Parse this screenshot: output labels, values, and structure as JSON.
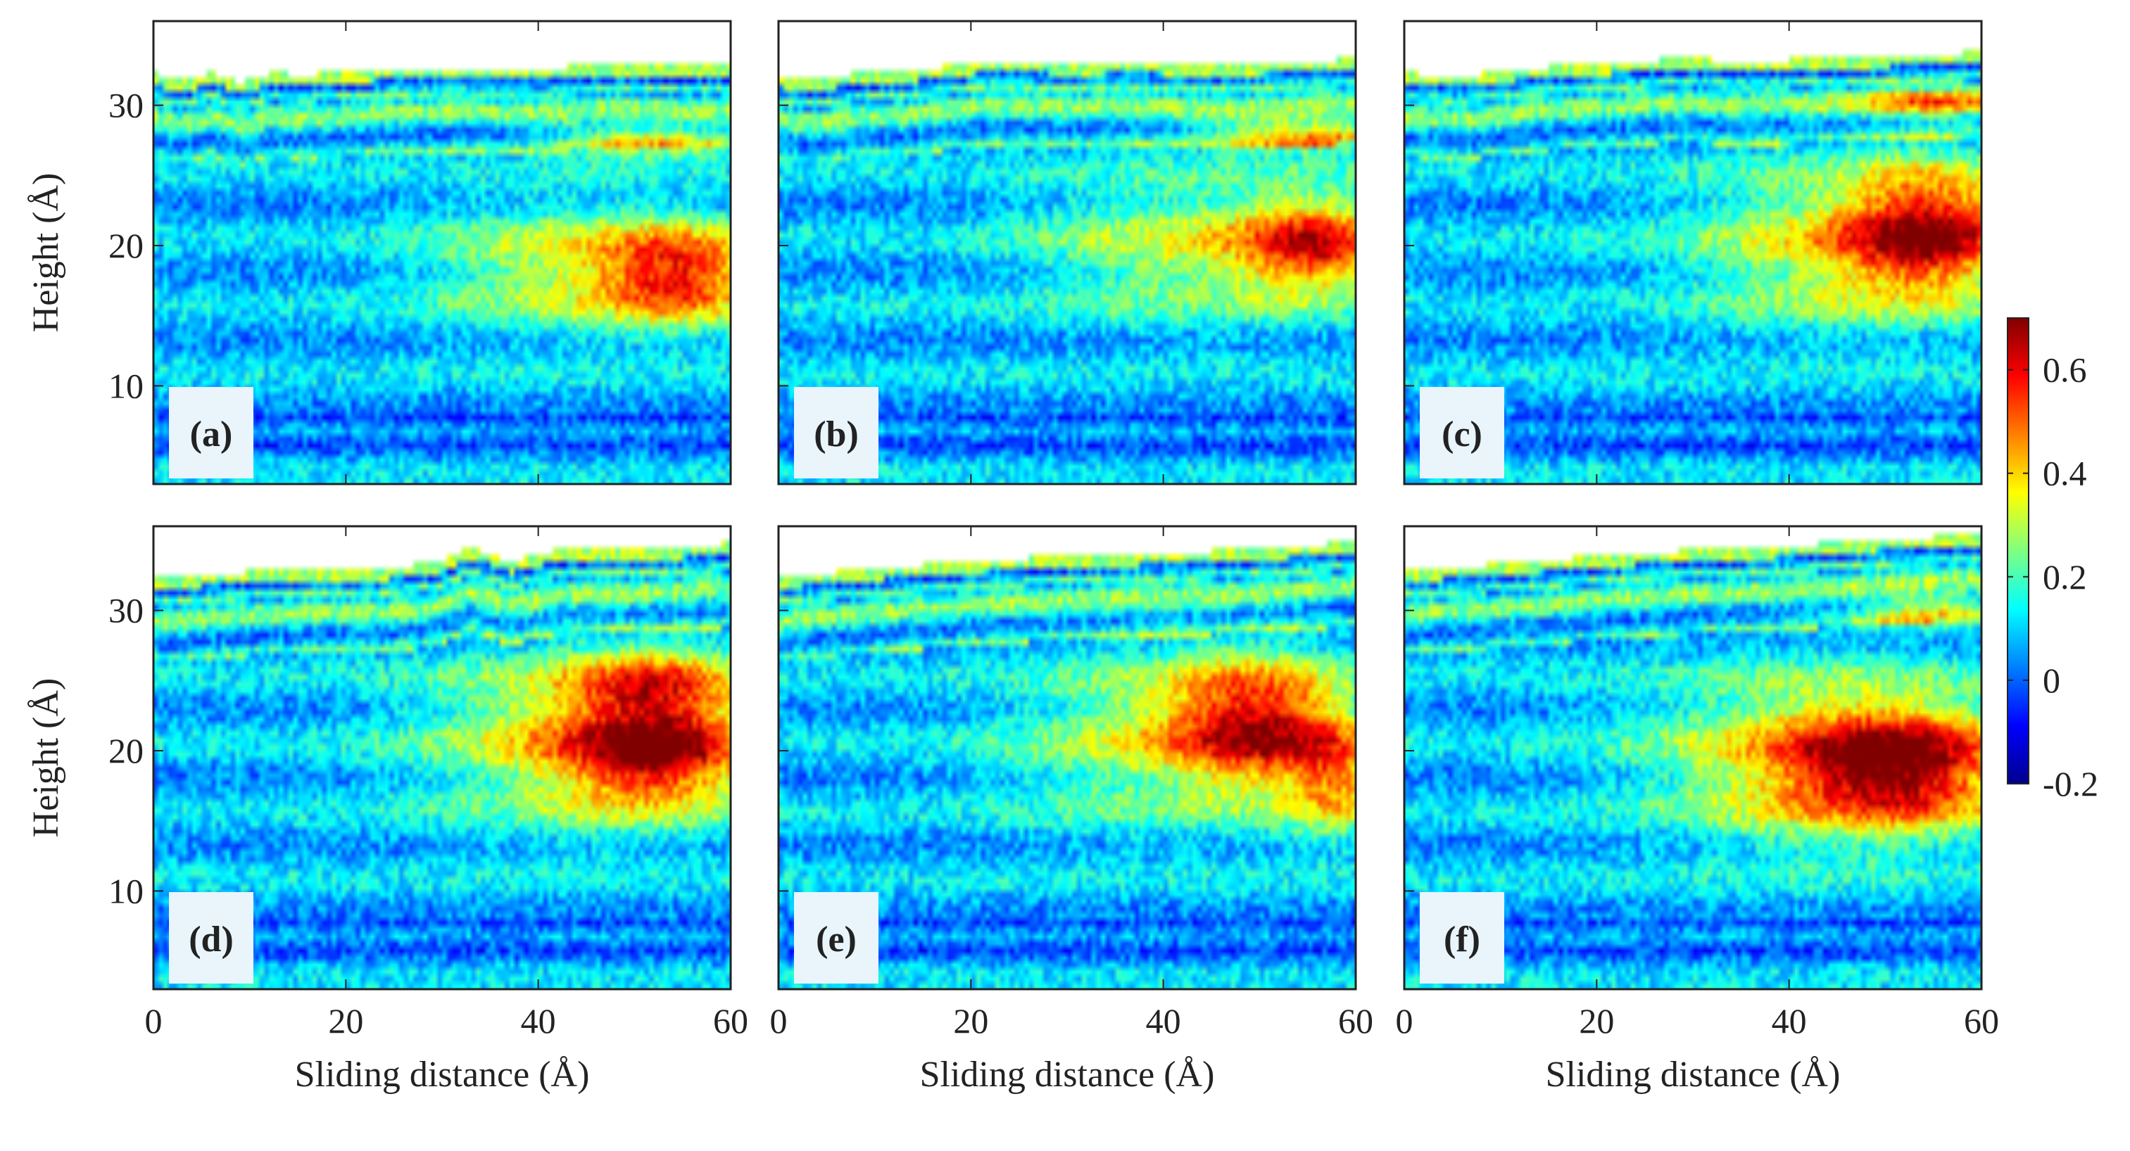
{
  "chart_data": {
    "type": "heatmap",
    "layout": "2x3 panels, shared colorbar at right",
    "colormap": "jet",
    "xlabel": "Sliding distance (Å)",
    "ylabel": "Height (Å)",
    "xlim": [
      0,
      60
    ],
    "ylim": [
      3,
      36
    ],
    "x_ticks": [
      0,
      20,
      40,
      60
    ],
    "x_tick_labels": [
      "0",
      "20",
      "40",
      "60"
    ],
    "y_ticks": [
      10,
      20,
      30
    ],
    "y_tick_labels": [
      "10",
      "20",
      "30"
    ],
    "colorbar": {
      "range": [
        -0.2,
        0.7
      ],
      "ticks": [
        -0.2,
        0,
        0.2,
        0.4,
        0.6
      ],
      "tick_labels": [
        "-0.2",
        "0",
        "0.2",
        "0.4",
        "0.6"
      ]
    },
    "panels": [
      {
        "label": "(a)",
        "surface_top": [
          {
            "x": 0,
            "y": 32.3
          },
          {
            "x": 3,
            "y": 31.7
          },
          {
            "x": 6,
            "y": 32.4
          },
          {
            "x": 9,
            "y": 31.6
          },
          {
            "x": 12,
            "y": 32.3
          },
          {
            "x": 16,
            "y": 32.2
          },
          {
            "x": 24,
            "y": 32.6
          },
          {
            "x": 32,
            "y": 32.7
          },
          {
            "x": 40,
            "y": 32.6
          },
          {
            "x": 48,
            "y": 33.0
          },
          {
            "x": 54,
            "y": 32.8
          },
          {
            "x": 60,
            "y": 32.9
          }
        ],
        "hotspots": [
          {
            "x": 55,
            "y": 18,
            "sx": 9,
            "sy": 3.5,
            "value": 0.45
          },
          {
            "x": 42,
            "y": 18.5,
            "sx": 14,
            "sy": 4.5,
            "value": 0.22
          },
          {
            "x": 52,
            "y": 27.5,
            "sx": 10,
            "sy": 1.2,
            "value": 0.3
          }
        ]
      },
      {
        "label": "(b)",
        "surface_top": [
          {
            "x": 0,
            "y": 32.1
          },
          {
            "x": 4,
            "y": 31.8
          },
          {
            "x": 8,
            "y": 32.3
          },
          {
            "x": 14,
            "y": 32.5
          },
          {
            "x": 22,
            "y": 33.2
          },
          {
            "x": 30,
            "y": 33.0
          },
          {
            "x": 38,
            "y": 33.1
          },
          {
            "x": 46,
            "y": 32.9
          },
          {
            "x": 52,
            "y": 33.1
          },
          {
            "x": 60,
            "y": 33.3
          }
        ],
        "hotspots": [
          {
            "x": 56,
            "y": 20,
            "sx": 8,
            "sy": 3.5,
            "value": 0.45
          },
          {
            "x": 42,
            "y": 20,
            "sx": 15,
            "sy": 5,
            "value": 0.22
          },
          {
            "x": 55,
            "y": 28,
            "sx": 10,
            "sy": 1.2,
            "value": 0.35
          }
        ]
      },
      {
        "label": "(c)",
        "surface_top": [
          {
            "x": 0,
            "y": 32.3
          },
          {
            "x": 6,
            "y": 32.1
          },
          {
            "x": 12,
            "y": 32.6
          },
          {
            "x": 20,
            "y": 33.0
          },
          {
            "x": 28,
            "y": 33.3
          },
          {
            "x": 36,
            "y": 33.2
          },
          {
            "x": 44,
            "y": 33.3
          },
          {
            "x": 52,
            "y": 33.6
          },
          {
            "x": 60,
            "y": 33.8
          }
        ],
        "hotspots": [
          {
            "x": 55,
            "y": 21,
            "sx": 9,
            "sy": 4.5,
            "value": 0.5
          },
          {
            "x": 44,
            "y": 20,
            "sx": 15,
            "sy": 5.5,
            "value": 0.25
          },
          {
            "x": 55,
            "y": 30,
            "sx": 8,
            "sy": 1.0,
            "value": 0.3
          }
        ]
      },
      {
        "label": "(d)",
        "surface_top": [
          {
            "x": 0,
            "y": 32.3
          },
          {
            "x": 8,
            "y": 32.7
          },
          {
            "x": 16,
            "y": 33.0
          },
          {
            "x": 24,
            "y": 33.0
          },
          {
            "x": 30,
            "y": 33.5
          },
          {
            "x": 33,
            "y": 34.5
          },
          {
            "x": 37,
            "y": 33.5
          },
          {
            "x": 42,
            "y": 34.3
          },
          {
            "x": 48,
            "y": 34.4
          },
          {
            "x": 54,
            "y": 34.5
          },
          {
            "x": 60,
            "y": 34.8
          }
        ],
        "hotspots": [
          {
            "x": 53,
            "y": 20,
            "sx": 10,
            "sy": 4,
            "value": 0.52
          },
          {
            "x": 42,
            "y": 21,
            "sx": 15,
            "sy": 6,
            "value": 0.25
          },
          {
            "x": 52,
            "y": 25,
            "sx": 9,
            "sy": 2.5,
            "value": 0.3
          }
        ]
      },
      {
        "label": "(e)",
        "surface_top": [
          {
            "x": 0,
            "y": 32.4
          },
          {
            "x": 10,
            "y": 33.0
          },
          {
            "x": 20,
            "y": 33.5
          },
          {
            "x": 30,
            "y": 33.9
          },
          {
            "x": 40,
            "y": 34.1
          },
          {
            "x": 50,
            "y": 34.4
          },
          {
            "x": 60,
            "y": 34.9
          }
        ],
        "hotspots": [
          {
            "x": 50,
            "y": 22,
            "sx": 9,
            "sy": 4.5,
            "value": 0.45
          },
          {
            "x": 40,
            "y": 21,
            "sx": 16,
            "sy": 6,
            "value": 0.22
          },
          {
            "x": 58,
            "y": 18,
            "sx": 5,
            "sy": 4,
            "value": 0.3
          }
        ]
      },
      {
        "label": "(f)",
        "surface_top": [
          {
            "x": 0,
            "y": 32.9
          },
          {
            "x": 10,
            "y": 33.3
          },
          {
            "x": 20,
            "y": 33.9
          },
          {
            "x": 30,
            "y": 34.3
          },
          {
            "x": 40,
            "y": 34.6
          },
          {
            "x": 50,
            "y": 35.1
          },
          {
            "x": 60,
            "y": 35.4
          }
        ],
        "hotspots": [
          {
            "x": 52,
            "y": 19,
            "sx": 12,
            "sy": 4.5,
            "value": 0.55
          },
          {
            "x": 40,
            "y": 19.5,
            "sx": 16,
            "sy": 6,
            "value": 0.25
          },
          {
            "x": 55,
            "y": 30,
            "sx": 8,
            "sy": 1.2,
            "value": 0.28
          }
        ]
      }
    ]
  }
}
